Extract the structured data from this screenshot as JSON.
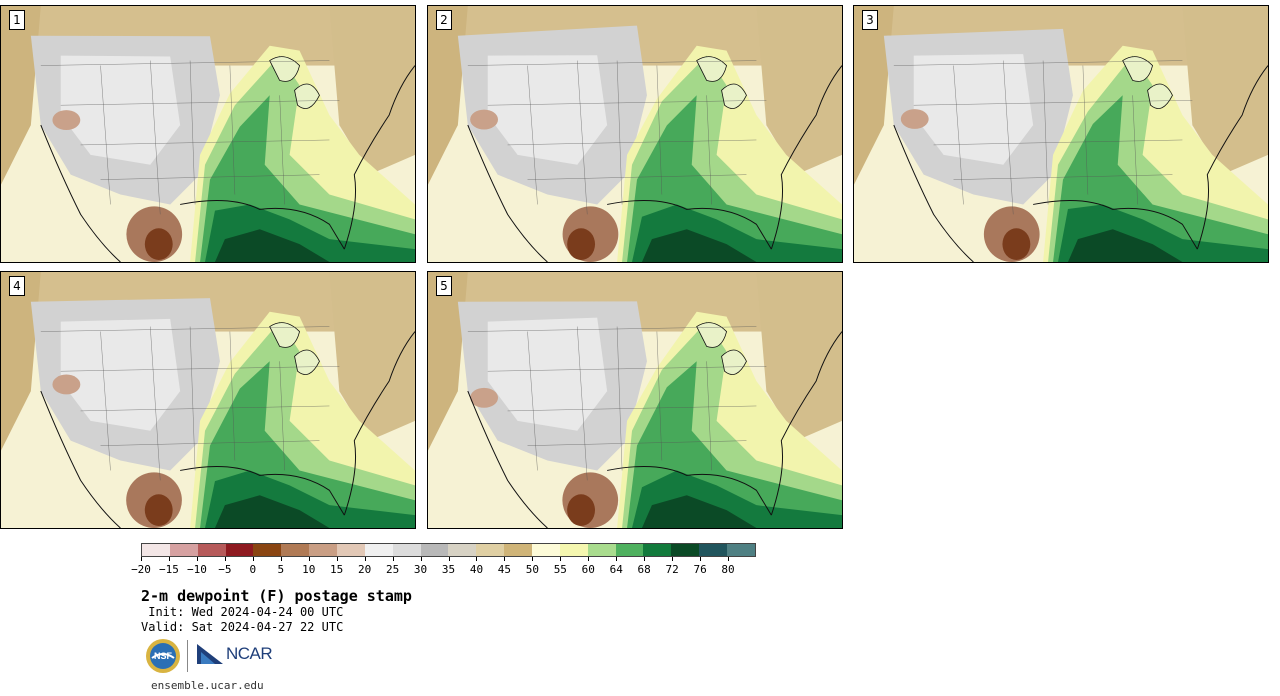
{
  "stamps": [
    {
      "label": "1"
    },
    {
      "label": "2"
    },
    {
      "label": "3"
    },
    {
      "label": "4"
    },
    {
      "label": "5"
    }
  ],
  "colorbar": {
    "colors": [
      "#f3e6e6",
      "#d6a1a1",
      "#b65a5a",
      "#8e1a20",
      "#8a4512",
      "#b07a55",
      "#c99e84",
      "#e2c8b6",
      "#f0f0f0",
      "#dcdcdc",
      "#b8b8b8",
      "#d7d2c4",
      "#dfcfa3",
      "#cfb478",
      "#fdfbd8",
      "#f5f7b0",
      "#a9dc8e",
      "#4fb15f",
      "#127a3c",
      "#0b4a26",
      "#21555d",
      "#4f8083"
    ],
    "tick_labels": [
      "−20",
      "−15",
      "−10",
      "−5",
      "0",
      "5",
      "10",
      "15",
      "20",
      "25",
      "30",
      "35",
      "40",
      "45",
      "50",
      "55",
      "60",
      "64",
      "68",
      "72",
      "76",
      "80"
    ]
  },
  "title": "2-m dewpoint (F) postage stamp",
  "init_line": " Init: Wed 2024-04-24 00 UTC",
  "valid_line": "Valid: Sat 2024-04-27 22 UTC",
  "logos": {
    "nsf_text": "NSF",
    "ncar_text": "NCAR"
  },
  "site_url": "ensemble.ucar.edu"
}
